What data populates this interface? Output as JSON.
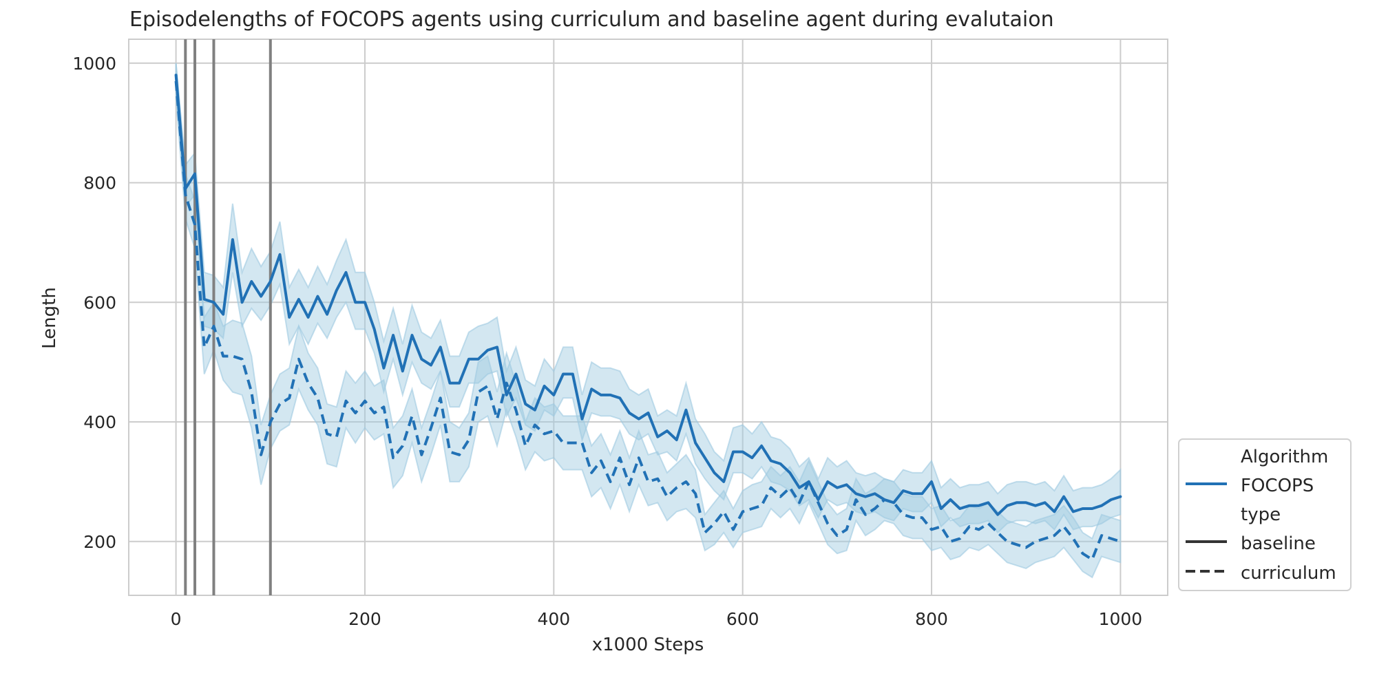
{
  "chart_data": {
    "type": "line",
    "title": "Episodelengths of FOCOPS agents using curriculum and baseline agent during evalutaion",
    "xlabel": "x1000 Steps",
    "ylabel": "Length",
    "xlim": [
      -50,
      1050
    ],
    "ylim": [
      110,
      1040
    ],
    "x_ticks": [
      0,
      200,
      400,
      600,
      800,
      1000
    ],
    "y_ticks": [
      200,
      400,
      600,
      800,
      1000
    ],
    "grid": true,
    "legend_position": "lower-right, outside plot area",
    "vertical_markers": [
      10,
      20,
      40,
      100
    ],
    "colors": {
      "line": "#2171b5",
      "band": "#9ecae1",
      "marker": "#808080",
      "grid": "#cccccc"
    },
    "legend": {
      "hue_title": "Algorithm",
      "hue_entries": [
        "FOCOPS"
      ],
      "style_title": "type",
      "style_entries": [
        "baseline",
        "curriculum"
      ]
    },
    "x": [
      0,
      10,
      20,
      30,
      40,
      50,
      60,
      70,
      80,
      90,
      100,
      110,
      120,
      130,
      140,
      150,
      160,
      170,
      180,
      190,
      200,
      210,
      220,
      230,
      240,
      250,
      260,
      270,
      280,
      290,
      300,
      310,
      320,
      330,
      340,
      350,
      360,
      370,
      380,
      390,
      400,
      410,
      420,
      430,
      440,
      450,
      460,
      470,
      480,
      490,
      500,
      510,
      520,
      530,
      540,
      550,
      560,
      570,
      580,
      590,
      600,
      610,
      620,
      630,
      640,
      650,
      660,
      670,
      680,
      690,
      700,
      710,
      720,
      730,
      740,
      750,
      760,
      770,
      780,
      790,
      800,
      810,
      820,
      830,
      840,
      850,
      860,
      870,
      880,
      890,
      900,
      910,
      920,
      930,
      940,
      950,
      960,
      970,
      980,
      990,
      1000
    ],
    "series": [
      {
        "name": "baseline",
        "linestyle": "solid",
        "values": [
          980,
          790,
          815,
          605,
          600,
          580,
          705,
          600,
          635,
          610,
          635,
          680,
          575,
          605,
          575,
          610,
          580,
          620,
          650,
          600,
          600,
          555,
          490,
          545,
          485,
          545,
          505,
          495,
          525,
          465,
          465,
          505,
          505,
          520,
          525,
          445,
          480,
          430,
          420,
          460,
          445,
          480,
          480,
          405,
          455,
          445,
          445,
          440,
          415,
          405,
          415,
          375,
          385,
          370,
          420,
          365,
          340,
          315,
          300,
          350,
          350,
          340,
          360,
          335,
          330,
          315,
          290,
          300,
          270,
          300,
          290,
          295,
          280,
          275,
          280,
          270,
          265,
          285,
          280,
          280,
          300,
          255,
          270,
          255,
          260,
          260,
          265,
          245,
          260,
          265,
          265,
          260,
          265,
          250,
          275,
          250,
          255,
          255,
          260,
          270,
          275
        ],
        "lower": [
          960,
          760,
          780,
          560,
          555,
          540,
          650,
          560,
          590,
          570,
          595,
          630,
          530,
          560,
          530,
          565,
          540,
          575,
          600,
          555,
          555,
          515,
          450,
          505,
          445,
          500,
          465,
          455,
          485,
          425,
          425,
          465,
          465,
          480,
          485,
          410,
          440,
          395,
          385,
          420,
          410,
          440,
          440,
          370,
          415,
          410,
          410,
          405,
          380,
          370,
          380,
          345,
          350,
          335,
          380,
          330,
          305,
          285,
          270,
          315,
          315,
          305,
          325,
          300,
          295,
          285,
          260,
          270,
          240,
          270,
          260,
          265,
          250,
          245,
          250,
          240,
          235,
          255,
          250,
          250,
          265,
          225,
          240,
          225,
          230,
          230,
          235,
          215,
          230,
          235,
          235,
          230,
          235,
          220,
          245,
          220,
          225,
          225,
          230,
          240,
          245
        ],
        "upper": [
          1000,
          830,
          850,
          650,
          645,
          625,
          765,
          650,
          690,
          660,
          685,
          735,
          625,
          655,
          625,
          660,
          630,
          670,
          705,
          650,
          650,
          600,
          535,
          590,
          530,
          595,
          550,
          540,
          570,
          510,
          510,
          550,
          560,
          565,
          575,
          485,
          525,
          470,
          460,
          505,
          485,
          525,
          525,
          445,
          500,
          490,
          490,
          485,
          455,
          445,
          455,
          410,
          420,
          410,
          465,
          405,
          380,
          350,
          335,
          390,
          395,
          380,
          400,
          375,
          370,
          355,
          325,
          340,
          305,
          340,
          325,
          335,
          315,
          310,
          315,
          305,
          300,
          320,
          315,
          315,
          335,
          290,
          305,
          290,
          295,
          295,
          300,
          280,
          295,
          300,
          300,
          295,
          300,
          285,
          310,
          285,
          290,
          290,
          295,
          305,
          320
        ]
      },
      {
        "name": "curriculum",
        "linestyle": "dashed",
        "values": [
          970,
          780,
          730,
          525,
          560,
          510,
          510,
          505,
          450,
          345,
          400,
          430,
          440,
          505,
          465,
          440,
          380,
          375,
          435,
          415,
          435,
          415,
          425,
          340,
          360,
          410,
          345,
          390,
          440,
          350,
          345,
          370,
          450,
          460,
          405,
          465,
          420,
          360,
          395,
          380,
          385,
          365,
          365,
          365,
          315,
          335,
          300,
          340,
          295,
          340,
          300,
          305,
          275,
          290,
          300,
          280,
          215,
          230,
          250,
          220,
          250,
          255,
          260,
          290,
          275,
          290,
          265,
          300,
          265,
          230,
          210,
          220,
          270,
          245,
          255,
          270,
          265,
          245,
          240,
          240,
          220,
          225,
          200,
          205,
          225,
          220,
          230,
          215,
          200,
          195,
          190,
          200,
          205,
          210,
          225,
          205,
          180,
          170,
          210,
          205,
          200
        ],
        "lower": [
          940,
          740,
          690,
          480,
          520,
          470,
          450,
          445,
          390,
          295,
          355,
          385,
          395,
          455,
          420,
          395,
          330,
          325,
          390,
          365,
          390,
          370,
          380,
          290,
          310,
          365,
          300,
          345,
          395,
          300,
          300,
          325,
          400,
          410,
          360,
          420,
          375,
          320,
          350,
          335,
          340,
          320,
          320,
          320,
          275,
          290,
          255,
          295,
          250,
          295,
          260,
          265,
          235,
          250,
          255,
          240,
          185,
          195,
          215,
          190,
          215,
          220,
          225,
          255,
          240,
          255,
          230,
          265,
          230,
          195,
          180,
          185,
          235,
          210,
          220,
          235,
          230,
          210,
          205,
          205,
          185,
          190,
          170,
          175,
          190,
          185,
          195,
          180,
          165,
          160,
          155,
          165,
          170,
          175,
          190,
          170,
          150,
          140,
          175,
          170,
          165
        ],
        "upper": [
          1000,
          815,
          770,
          575,
          600,
          560,
          570,
          565,
          510,
          395,
          445,
          480,
          490,
          560,
          515,
          490,
          430,
          425,
          485,
          465,
          485,
          460,
          470,
          390,
          410,
          455,
          390,
          435,
          485,
          400,
          390,
          415,
          500,
          510,
          450,
          515,
          465,
          400,
          440,
          425,
          430,
          410,
          410,
          410,
          360,
          380,
          345,
          385,
          340,
          385,
          345,
          350,
          315,
          330,
          345,
          320,
          245,
          265,
          285,
          255,
          285,
          295,
          300,
          325,
          310,
          325,
          300,
          335,
          300,
          265,
          245,
          255,
          305,
          280,
          290,
          305,
          300,
          280,
          275,
          275,
          255,
          260,
          235,
          240,
          260,
          255,
          265,
          250,
          235,
          230,
          225,
          235,
          240,
          245,
          260,
          240,
          215,
          205,
          245,
          240,
          235
        ]
      }
    ]
  }
}
